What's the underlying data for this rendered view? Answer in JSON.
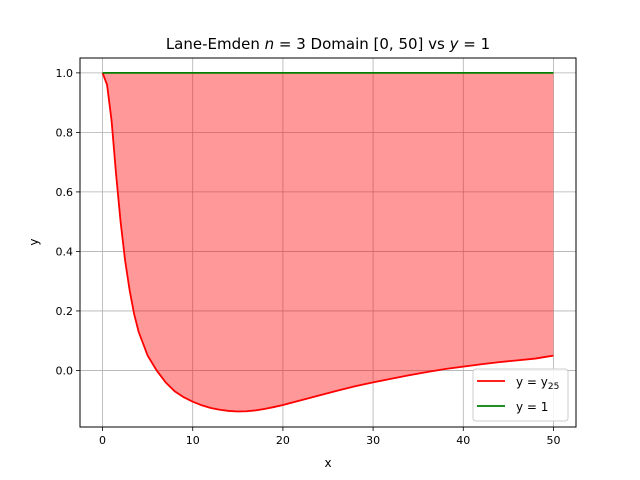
{
  "chart_data": {
    "type": "line",
    "title": "Lane-Emden $n=3$ Domain $[0,50]$ vs $y=1$",
    "xlabel": "x",
    "ylabel": "y",
    "xlim": [
      -2.5,
      52.5
    ],
    "ylim": [
      -0.19,
      1.05
    ],
    "xticks": [
      "0",
      "10",
      "20",
      "30",
      "40",
      "50"
    ],
    "yticks": [
      "0.0",
      "0.2",
      "0.4",
      "0.6",
      "0.8",
      "1.0"
    ],
    "grid": true,
    "legend_position": "lower-right",
    "series": [
      {
        "name": "y = y25",
        "color": "#ff0000",
        "x": [
          0,
          0.5,
          1,
          1.5,
          2,
          2.5,
          3,
          3.5,
          4,
          5,
          6,
          7,
          8,
          9,
          10,
          11,
          12,
          13,
          14,
          15,
          16,
          17,
          18,
          19,
          20,
          22,
          24,
          26,
          28,
          30,
          32,
          34,
          36,
          38,
          40,
          42,
          44,
          46,
          48,
          49,
          50
        ],
        "y": [
          1.0,
          0.96,
          0.84,
          0.66,
          0.5,
          0.37,
          0.27,
          0.19,
          0.13,
          0.05,
          0.0,
          -0.04,
          -0.07,
          -0.09,
          -0.105,
          -0.117,
          -0.126,
          -0.132,
          -0.136,
          -0.138,
          -0.137,
          -0.134,
          -0.129,
          -0.123,
          -0.116,
          -0.1,
          -0.084,
          -0.068,
          -0.053,
          -0.04,
          -0.028,
          -0.016,
          -0.005,
          0.005,
          0.013,
          0.021,
          0.028,
          0.034,
          0.04,
          0.045,
          0.05
        ]
      },
      {
        "name": "y = 1",
        "color": "#008000",
        "x": [
          0,
          50
        ],
        "y": [
          1,
          1
        ]
      }
    ],
    "fill_between": {
      "color": "#ff0000",
      "alpha": 0.4
    }
  },
  "legend": {
    "entries": [
      {
        "label_main": "y = y",
        "label_sub": "25",
        "color": "#ff0000"
      },
      {
        "label_main": "y = 1",
        "label_sub": "",
        "color": "#008000"
      }
    ]
  }
}
